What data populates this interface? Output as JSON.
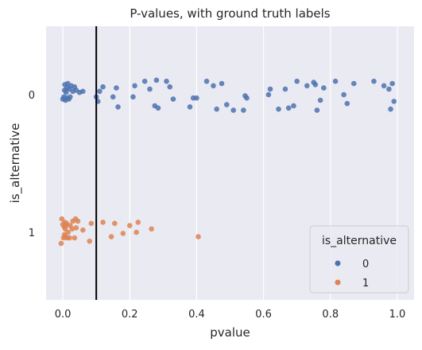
{
  "chart_data": {
    "type": "scatter",
    "title": "P-values, with ground truth labels",
    "xlabel": "pvalue",
    "ylabel": "is_alternative",
    "xlim": [
      -0.05,
      1.05
    ],
    "xticks": [
      0.0,
      0.2,
      0.4,
      0.6,
      0.8,
      1.0
    ],
    "xtick_labels": [
      "0.0",
      "0.2",
      "0.4",
      "0.6",
      "0.8",
      "1.0"
    ],
    "categories": [
      "0",
      "1"
    ],
    "grid": true,
    "background": "#eaeaf2",
    "vline": {
      "x": 0.1,
      "color": "#000000"
    },
    "legend": {
      "title": "is_alternative",
      "placement": "lower right",
      "entries": [
        {
          "label": "0",
          "color": "#4c72b0"
        },
        {
          "label": "1",
          "color": "#dd8452"
        }
      ]
    },
    "series": [
      {
        "name": "0",
        "color": "#4c72b0",
        "points": [
          [
            0.0,
            0.04
          ],
          [
            0.003,
            0.02
          ],
          [
            0.005,
            -0.04
          ],
          [
            0.006,
            -0.09
          ],
          [
            0.008,
            0.05
          ],
          [
            0.01,
            -0.02
          ],
          [
            0.012,
            -0.06
          ],
          [
            0.013,
            0.03
          ],
          [
            0.015,
            -0.1
          ],
          [
            0.018,
            0.04
          ],
          [
            0.02,
            -0.05
          ],
          [
            0.022,
            0.02
          ],
          [
            0.025,
            -0.08
          ],
          [
            0.03,
            -0.03
          ],
          [
            0.035,
            -0.07
          ],
          [
            0.04,
            -0.04
          ],
          [
            0.05,
            -0.02
          ],
          [
            0.06,
            -0.03
          ],
          [
            0.1,
            0.02
          ],
          [
            0.105,
            0.06
          ],
          [
            0.11,
            -0.03
          ],
          [
            0.12,
            -0.07
          ],
          [
            0.15,
            0.02
          ],
          [
            0.16,
            -0.06
          ],
          [
            0.165,
            0.11
          ],
          [
            0.21,
            0.02
          ],
          [
            0.215,
            -0.08
          ],
          [
            0.245,
            -0.12
          ],
          [
            0.26,
            -0.05
          ],
          [
            0.275,
            0.1
          ],
          [
            0.28,
            -0.13
          ],
          [
            0.285,
            0.12
          ],
          [
            0.31,
            -0.12
          ],
          [
            0.32,
            -0.07
          ],
          [
            0.33,
            0.04
          ],
          [
            0.38,
            0.11
          ],
          [
            0.39,
            0.03
          ],
          [
            0.4,
            0.03
          ],
          [
            0.43,
            -0.12
          ],
          [
            0.45,
            -0.08
          ],
          [
            0.46,
            0.13
          ],
          [
            0.475,
            -0.1
          ],
          [
            0.49,
            0.09
          ],
          [
            0.51,
            0.14
          ],
          [
            0.54,
            0.14
          ],
          [
            0.545,
            0.01
          ],
          [
            0.55,
            0.03
          ],
          [
            0.615,
            0.0
          ],
          [
            0.62,
            -0.05
          ],
          [
            0.645,
            0.13
          ],
          [
            0.665,
            -0.05
          ],
          [
            0.675,
            0.12
          ],
          [
            0.69,
            0.1
          ],
          [
            0.7,
            -0.12
          ],
          [
            0.73,
            -0.08
          ],
          [
            0.75,
            -0.11
          ],
          [
            0.755,
            -0.09
          ],
          [
            0.76,
            0.14
          ],
          [
            0.77,
            0.05
          ],
          [
            0.78,
            -0.06
          ],
          [
            0.815,
            -0.12
          ],
          [
            0.84,
            0.0
          ],
          [
            0.85,
            0.08
          ],
          [
            0.87,
            -0.1
          ],
          [
            0.93,
            -0.12
          ],
          [
            0.96,
            -0.08
          ],
          [
            0.975,
            -0.05
          ],
          [
            0.98,
            0.13
          ],
          [
            0.985,
            -0.1
          ],
          [
            0.99,
            0.06
          ]
        ]
      },
      {
        "name": "1",
        "color": "#dd8452",
        "points": [
          [
            -0.005,
            0.1
          ],
          [
            -0.003,
            -0.12
          ],
          [
            0.0,
            -0.07
          ],
          [
            0.002,
            0.05
          ],
          [
            0.004,
            -0.05
          ],
          [
            0.005,
            0.02
          ],
          [
            0.006,
            -0.09
          ],
          [
            0.007,
            -0.03
          ],
          [
            0.008,
            0.04
          ],
          [
            0.01,
            -0.06
          ],
          [
            0.011,
            -0.08
          ],
          [
            0.013,
            0.05
          ],
          [
            0.016,
            0.0
          ],
          [
            0.02,
            0.05
          ],
          [
            0.022,
            -0.06
          ],
          [
            0.028,
            -0.03
          ],
          [
            0.03,
            -0.1
          ],
          [
            0.035,
            0.05
          ],
          [
            0.038,
            -0.12
          ],
          [
            0.04,
            -0.04
          ],
          [
            0.045,
            -0.1
          ],
          [
            0.06,
            -0.02
          ],
          [
            0.08,
            0.08
          ],
          [
            0.085,
            -0.08
          ],
          [
            0.12,
            -0.09
          ],
          [
            0.145,
            0.04
          ],
          [
            0.155,
            -0.08
          ],
          [
            0.18,
            0.01
          ],
          [
            0.2,
            -0.06
          ],
          [
            0.22,
            0.0
          ],
          [
            0.225,
            -0.09
          ],
          [
            0.265,
            -0.03
          ],
          [
            0.405,
            0.04
          ]
        ]
      }
    ]
  }
}
